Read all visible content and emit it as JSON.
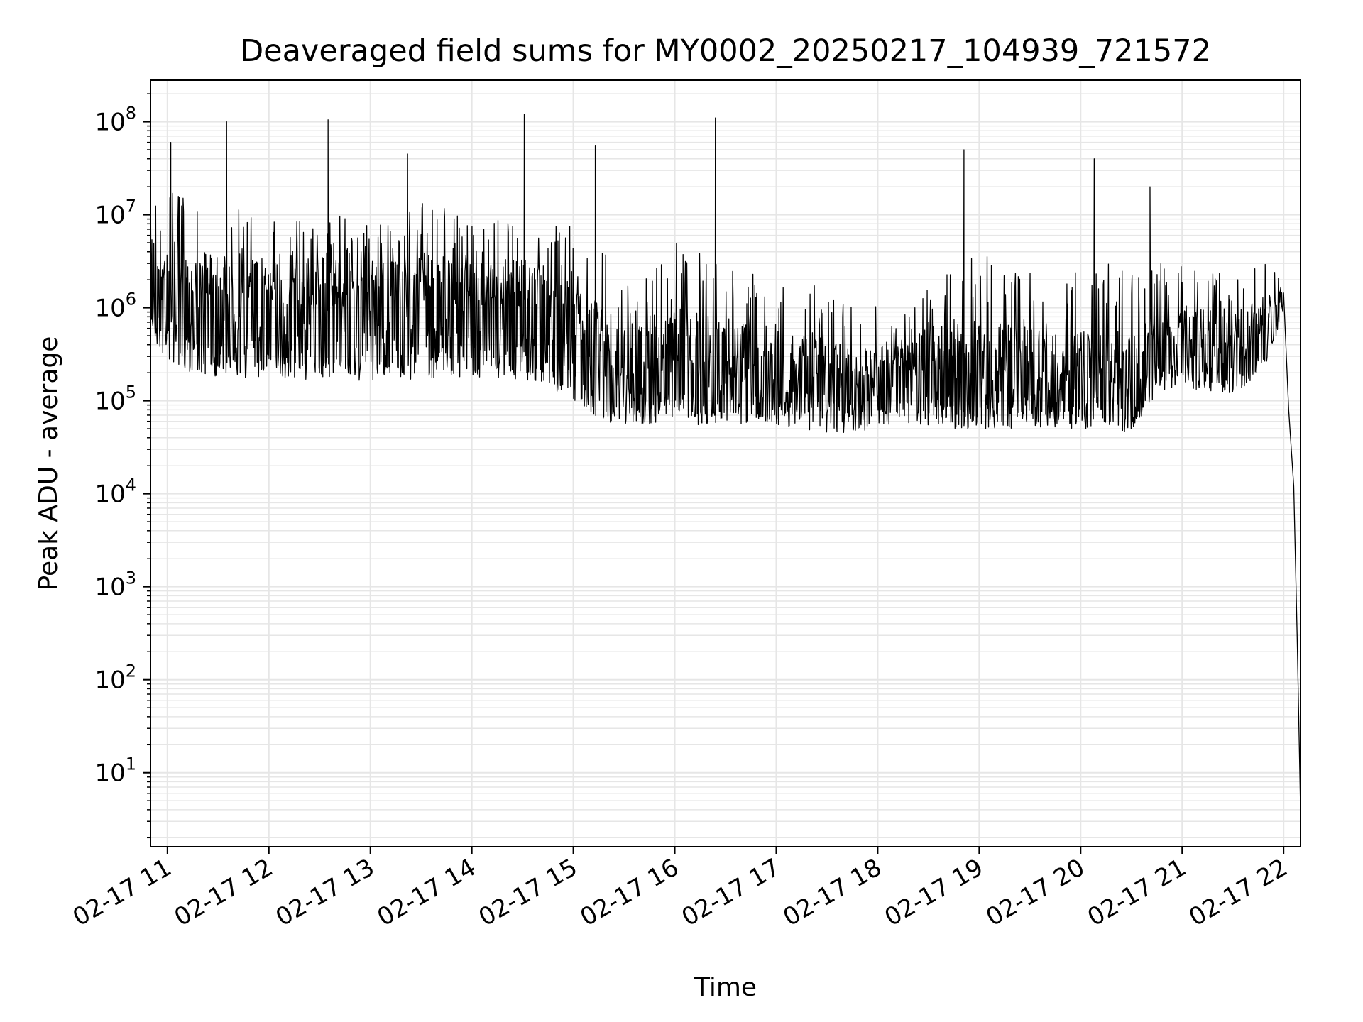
{
  "chart_data": {
    "type": "line",
    "title": "Deaveraged field sums for MY0002_20250217_104939_721572",
    "xlabel": "Time",
    "ylabel": "Peak ADU - average",
    "y_scale": "log",
    "y_base": "10",
    "y_tick_exponents": [
      "1",
      "2",
      "3",
      "4",
      "5",
      "6",
      "7",
      "8"
    ],
    "ylim": [
      1.6,
      280000000
    ],
    "x_tick_labels": [
      "02-17 11",
      "02-17 12",
      "02-17 13",
      "02-17 14",
      "02-17 15",
      "02-17 16",
      "02-17 17",
      "02-17 18",
      "02-17 19",
      "02-17 20",
      "02-17 21",
      "02-17 22"
    ],
    "xlim": [
      "2025-02-17 10:50",
      "2025-02-17 22:10"
    ],
    "grid": true,
    "line_color": "#000000",
    "grid_color": "#e6e6e6",
    "series": [
      {
        "x": [
          "2025-02-17 10:50",
          "2025-02-17 11:00",
          "2025-02-17 11:15",
          "2025-02-17 11:30",
          "2025-02-17 11:45",
          "2025-02-17 12:00",
          "2025-02-17 12:15",
          "2025-02-17 12:30",
          "2025-02-17 12:45",
          "2025-02-17 13:00",
          "2025-02-17 13:15",
          "2025-02-17 13:30",
          "2025-02-17 13:45",
          "2025-02-17 14:00",
          "2025-02-17 14:15",
          "2025-02-17 14:30",
          "2025-02-17 14:45",
          "2025-02-17 15:00",
          "2025-02-17 15:15",
          "2025-02-17 15:30",
          "2025-02-17 15:45",
          "2025-02-17 16:00",
          "2025-02-17 16:15",
          "2025-02-17 16:30",
          "2025-02-17 16:45",
          "2025-02-17 17:00",
          "2025-02-17 17:15",
          "2025-02-17 17:30",
          "2025-02-17 17:45",
          "2025-02-17 18:00",
          "2025-02-17 18:15",
          "2025-02-17 18:30",
          "2025-02-17 18:45",
          "2025-02-17 19:00",
          "2025-02-17 19:15",
          "2025-02-17 19:30",
          "2025-02-17 19:45",
          "2025-02-17 20:00",
          "2025-02-17 20:15",
          "2025-02-17 20:30",
          "2025-02-17 20:45",
          "2025-02-17 21:00",
          "2025-02-17 21:15",
          "2025-02-17 21:30",
          "2025-02-17 21:45",
          "2025-02-17 22:00",
          "2025-02-17 22:03",
          "2025-02-17 22:06",
          "2025-02-17 22:08",
          "2025-02-17 22:10"
        ],
        "values": [
          2000000,
          1500000,
          1200000,
          1300000,
          1100000,
          1200000,
          1000000,
          1100000,
          1000000,
          1200000,
          1100000,
          1300000,
          1200000,
          1100000,
          1000000,
          1000000,
          900000,
          500000,
          300000,
          150000,
          170000,
          180000,
          200000,
          160000,
          150000,
          180000,
          150000,
          140000,
          130000,
          130000,
          200000,
          250000,
          150000,
          140000,
          160000,
          150000,
          130000,
          120000,
          110000,
          100000,
          350000,
          400000,
          350000,
          300000,
          500000,
          1200000,
          80000,
          12000,
          300,
          4
        ],
        "upper": [
          30000000,
          20000000,
          15000000,
          12000000,
          12000000,
          10000000,
          10000000,
          12000000,
          10000000,
          9000000,
          9000000,
          15000000,
          12000000,
          8000000,
          10000000,
          12000000,
          9000000,
          8000000,
          5000000,
          3000000,
          4000000,
          5000000,
          4000000,
          3000000,
          2500000,
          3000000,
          2000000,
          1500000,
          1200000,
          1200000,
          800000,
          2000000,
          3000000,
          4000000,
          3000000,
          2500000,
          2000000,
          2500000,
          3000000,
          2500000,
          3000000,
          3000000,
          2500000,
          2500000,
          3000000,
          3000000,
          80000,
          12000,
          300,
          4
        ],
        "lower": [
          500000,
          250000,
          200000,
          180000,
          170000,
          180000,
          170000,
          170000,
          160000,
          160000,
          160000,
          170000,
          180000,
          180000,
          170000,
          170000,
          140000,
          100000,
          60000,
          55000,
          55000,
          55000,
          55000,
          55000,
          55000,
          55000,
          50000,
          45000,
          45000,
          50000,
          55000,
          55000,
          50000,
          50000,
          50000,
          50000,
          50000,
          50000,
          50000,
          45000,
          120000,
          150000,
          120000,
          120000,
          150000,
          800000,
          80000,
          12000,
          300,
          4
        ],
        "spikes": [
          [
            "2025-02-17 11:02",
            60000000
          ],
          [
            "2025-02-17 11:35",
            100000000
          ],
          [
            "2025-02-17 12:35",
            105000000
          ],
          [
            "2025-02-17 13:22",
            45000000
          ],
          [
            "2025-02-17 14:31",
            120000000
          ],
          [
            "2025-02-17 15:13",
            55000000
          ],
          [
            "2025-02-17 16:24",
            110000000
          ],
          [
            "2025-02-17 18:51",
            50000000
          ],
          [
            "2025-02-17 20:08",
            40000000
          ],
          [
            "2025-02-17 20:41",
            20000000
          ]
        ]
      }
    ]
  }
}
